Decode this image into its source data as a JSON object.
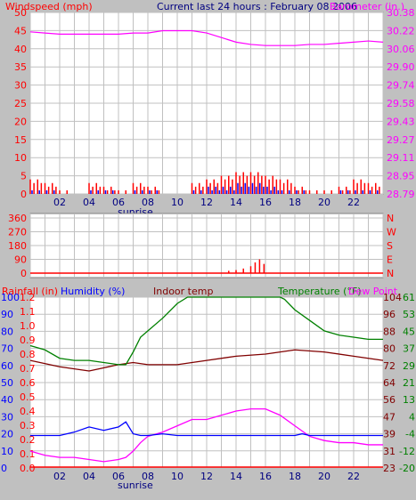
{
  "header": {
    "left_label": "Windspeed (mph)",
    "center_title": "Current last 24 hours : February 08 2006",
    "right_label": "Barometer (in.)"
  },
  "colors": {
    "background": "#c0c0c0",
    "plot_bg": "#ffffff",
    "grid": "#c0c0c0",
    "red": "#ff0000",
    "blue": "#0000ff",
    "magenta": "#ff00ff",
    "green": "#008000",
    "darkred": "#800000",
    "navy": "#000080",
    "dew": "#ff00ff"
  },
  "x_axis": {
    "ticks": [
      "02",
      "04",
      "06",
      "08",
      "10",
      "12",
      "14",
      "16",
      "18",
      "20",
      "22"
    ],
    "sunrise_label": "sunrise",
    "sunrise_hour": 6.5
  },
  "chart_data": [
    {
      "type": "line",
      "name": "wind_barometer",
      "left_axis": {
        "label": "Windspeed (mph)",
        "ticks": [
          "0",
          "5",
          "10",
          "15",
          "20",
          "25",
          "30",
          "35",
          "40",
          "45",
          "50"
        ],
        "range": [
          0,
          50
        ]
      },
      "right_axis": {
        "label": "Barometer (in.)",
        "ticks": [
          "28.79",
          "28.95",
          "29.11",
          "29.27",
          "29.43",
          "29.58",
          "29.74",
          "29.90",
          "30.06",
          "30.22",
          "30.38"
        ],
        "range": [
          28.79,
          30.38
        ]
      },
      "barometer": {
        "hours": [
          0,
          1,
          2,
          3,
          4,
          5,
          6,
          7,
          8,
          9,
          10,
          11,
          12,
          13,
          14,
          15,
          16,
          17,
          18,
          19,
          20,
          21,
          22,
          23,
          24
        ],
        "values": [
          30.21,
          30.2,
          30.19,
          30.19,
          30.19,
          30.19,
          30.19,
          30.2,
          30.2,
          30.22,
          30.22,
          30.22,
          30.2,
          30.16,
          30.12,
          30.1,
          30.09,
          30.09,
          30.09,
          30.1,
          30.1,
          30.11,
          30.12,
          30.13,
          30.12
        ]
      },
      "windspeed_max_mph_by_hour": [
        4,
        3,
        1,
        0,
        3,
        2,
        1,
        3,
        2,
        0,
        0,
        3,
        4,
        5,
        6,
        6,
        5,
        4,
        2,
        1,
        1,
        2,
        4,
        3
      ],
      "windspeed_avg_mph_by_hour": [
        1,
        1,
        0,
        0,
        1,
        1,
        0,
        1,
        1,
        0,
        0,
        1,
        2,
        2,
        3,
        3,
        2,
        1,
        1,
        0,
        0,
        1,
        1,
        1
      ]
    },
    {
      "type": "scatter",
      "name": "wind_direction",
      "left_axis": {
        "ticks": [
          "360",
          "270",
          "180",
          "90",
          "0"
        ],
        "range": [
          0,
          360
        ]
      },
      "right_axis": {
        "ticks": [
          "N",
          "W",
          "S",
          "E",
          "N"
        ]
      },
      "points": [
        {
          "h": 13.5,
          "deg": 15
        },
        {
          "h": 14.0,
          "deg": 20
        },
        {
          "h": 14.5,
          "deg": 30
        },
        {
          "h": 15.0,
          "deg": 45
        },
        {
          "h": 15.3,
          "deg": 70
        },
        {
          "h": 15.6,
          "deg": 90
        },
        {
          "h": 15.9,
          "deg": 60
        }
      ]
    },
    {
      "type": "line",
      "name": "temperature_humidity",
      "labels": {
        "rainfall": "Rainfall (in)",
        "humidity": "Humidity (%)",
        "indoor": "Indoor temp",
        "temperature": "Temperature (°F)",
        "dewpoint": "Dew Point"
      },
      "axis_rainfall": {
        "ticks": [
          "0.0",
          "0.1",
          "0.2",
          "0.3",
          "0.4",
          "0.5",
          "0.6",
          "0.7",
          "0.8",
          "0.9",
          "1.0",
          "1.1",
          "1.2"
        ]
      },
      "axis_humidity": {
        "ticks": [
          "0",
          "10",
          "20",
          "30",
          "40",
          "50",
          "60",
          "70",
          "80",
          "90",
          "100"
        ]
      },
      "axis_indoor": {
        "ticks": [
          "23",
          "31",
          "39",
          "47",
          "56",
          "64",
          "72",
          "80",
          "88",
          "96",
          "104"
        ]
      },
      "axis_temp": {
        "ticks": [
          "-20",
          "-12",
          "-4",
          "4",
          "13",
          "21",
          "29",
          "37",
          "45",
          "53",
          "61"
        ]
      },
      "series": [
        {
          "name": "Indoor temp",
          "color": "darkred",
          "hours": [
            0,
            2,
            4,
            6,
            7,
            8,
            10,
            12,
            14,
            16,
            18,
            20,
            22,
            24
          ],
          "values": [
            74.0,
            71.0,
            69.0,
            72.0,
            73.0,
            72.0,
            72.0,
            74.0,
            76.0,
            77.0,
            79.0,
            78.0,
            76.0,
            74.0
          ]
        },
        {
          "name": "Temperature (°F)",
          "color": "green",
          "hours": [
            0,
            1,
            2,
            3,
            4,
            5,
            6,
            6.5,
            7,
            7.5,
            8,
            9,
            10,
            10.7,
            11,
            13,
            15,
            17,
            17.3,
            18,
            19,
            20,
            21,
            22,
            23,
            24
          ],
          "values": [
            38,
            36,
            32,
            31,
            31,
            30,
            29,
            29,
            35,
            42,
            45,
            51,
            58,
            61,
            70,
            75,
            70,
            61,
            60,
            55,
            50,
            45,
            43,
            42,
            41,
            41
          ]
        },
        {
          "name": "Dew Point",
          "color": "magenta",
          "hours": [
            0,
            1,
            2,
            3,
            4,
            5,
            6,
            6.5,
            7,
            7.5,
            8,
            9,
            10,
            11,
            12,
            13,
            14,
            15,
            16,
            17,
            18,
            19,
            20,
            21,
            22,
            23,
            24
          ],
          "values": [
            -12,
            -14,
            -15,
            -15,
            -16,
            -17,
            -16,
            -15,
            -12,
            -8,
            -5,
            -3,
            0,
            3,
            3,
            5,
            7,
            8,
            8,
            5,
            0,
            -5,
            -7,
            -8,
            -8,
            -9,
            -9
          ]
        },
        {
          "name": "Humidity (%)",
          "color": "blue",
          "hours": [
            0,
            2,
            3,
            4,
            5,
            6,
            6.5,
            7,
            7.5,
            8,
            9,
            10,
            11,
            12,
            13,
            14,
            15,
            16,
            17,
            18,
            18.5,
            19,
            20,
            22,
            24
          ],
          "values": [
            19,
            19,
            21,
            24,
            22,
            24,
            27,
            20,
            19,
            19,
            20,
            19,
            19,
            19,
            19,
            19,
            19,
            19,
            19,
            19,
            20,
            19,
            19,
            19,
            19
          ]
        }
      ]
    }
  ]
}
